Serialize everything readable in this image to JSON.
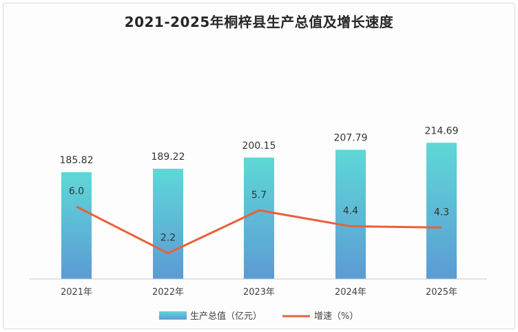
{
  "chart_data": {
    "type": "bar",
    "title": "2021-2025年桐梓县生产总值及增长速度",
    "categories": [
      "2021年",
      "2022年",
      "2023年",
      "2024年",
      "2025年"
    ],
    "series": [
      {
        "name": "生产总值（亿元）",
        "type": "bar",
        "values": [
          185.82,
          189.22,
          200.15,
          207.79,
          214.69
        ],
        "color_top": "#5fd8d6",
        "color_bottom": "#5b9bd5"
      },
      {
        "name": "增速（%）",
        "type": "line",
        "values": [
          6.0,
          2.2,
          5.7,
          4.4,
          4.3
        ],
        "color": "#e8603c"
      }
    ],
    "grid": false,
    "legend_position": "bottom"
  }
}
